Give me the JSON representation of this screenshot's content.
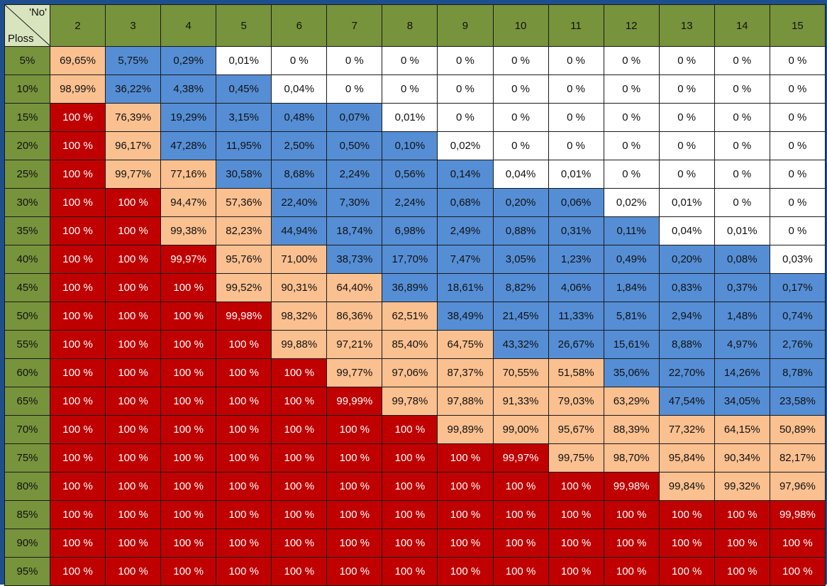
{
  "colors": {
    "header": "#77933c",
    "corner": "#d7e4bd",
    "red": "#c00000",
    "peach": "#fac090",
    "blue": "#558ed5",
    "white": "#ffffff",
    "frame": "#1f4e8c"
  },
  "chart_data": {
    "type": "table",
    "corner": {
      "top_right": "'No'",
      "bottom_left": "Ploss"
    },
    "columns": [
      "2",
      "3",
      "4",
      "5",
      "6",
      "7",
      "8",
      "9",
      "10",
      "11",
      "12",
      "13",
      "14",
      "15"
    ],
    "rows": [
      {
        "label": "5%",
        "cells": [
          [
            "69,65%",
            "peach"
          ],
          [
            "5,75%",
            "blue"
          ],
          [
            "0,29%",
            "blue"
          ],
          [
            "0,01%",
            "white"
          ],
          [
            "0 %",
            "white"
          ],
          [
            "0 %",
            "white"
          ],
          [
            "0 %",
            "white"
          ],
          [
            "0 %",
            "white"
          ],
          [
            "0 %",
            "white"
          ],
          [
            "0 %",
            "white"
          ],
          [
            "0 %",
            "white"
          ],
          [
            "0 %",
            "white"
          ],
          [
            "0 %",
            "white"
          ],
          [
            "0 %",
            "white"
          ]
        ]
      },
      {
        "label": "10%",
        "cells": [
          [
            "98,99%",
            "peach"
          ],
          [
            "36,22%",
            "blue"
          ],
          [
            "4,38%",
            "blue"
          ],
          [
            "0,45%",
            "blue"
          ],
          [
            "0,04%",
            "white"
          ],
          [
            "0 %",
            "white"
          ],
          [
            "0 %",
            "white"
          ],
          [
            "0 %",
            "white"
          ],
          [
            "0 %",
            "white"
          ],
          [
            "0 %",
            "white"
          ],
          [
            "0 %",
            "white"
          ],
          [
            "0 %",
            "white"
          ],
          [
            "0 %",
            "white"
          ],
          [
            "0 %",
            "white"
          ]
        ]
      },
      {
        "label": "15%",
        "cells": [
          [
            "100 %",
            "red"
          ],
          [
            "76,39%",
            "peach"
          ],
          [
            "19,29%",
            "blue"
          ],
          [
            "3,15%",
            "blue"
          ],
          [
            "0,48%",
            "blue"
          ],
          [
            "0,07%",
            "blue"
          ],
          [
            "0,01%",
            "white"
          ],
          [
            "0 %",
            "white"
          ],
          [
            "0 %",
            "white"
          ],
          [
            "0 %",
            "white"
          ],
          [
            "0 %",
            "white"
          ],
          [
            "0 %",
            "white"
          ],
          [
            "0 %",
            "white"
          ],
          [
            "0 %",
            "white"
          ]
        ]
      },
      {
        "label": "20%",
        "cells": [
          [
            "100 %",
            "red"
          ],
          [
            "96,17%",
            "peach"
          ],
          [
            "47,28%",
            "blue"
          ],
          [
            "11,95%",
            "blue"
          ],
          [
            "2,50%",
            "blue"
          ],
          [
            "0,50%",
            "blue"
          ],
          [
            "0,10%",
            "blue"
          ],
          [
            "0,02%",
            "white"
          ],
          [
            "0 %",
            "white"
          ],
          [
            "0 %",
            "white"
          ],
          [
            "0 %",
            "white"
          ],
          [
            "0 %",
            "white"
          ],
          [
            "0 %",
            "white"
          ],
          [
            "0 %",
            "white"
          ]
        ]
      },
      {
        "label": "25%",
        "cells": [
          [
            "100 %",
            "red"
          ],
          [
            "99,77%",
            "peach"
          ],
          [
            "77,16%",
            "peach"
          ],
          [
            "30,58%",
            "blue"
          ],
          [
            "8,68%",
            "blue"
          ],
          [
            "2,24%",
            "blue"
          ],
          [
            "0,56%",
            "blue"
          ],
          [
            "0,14%",
            "blue"
          ],
          [
            "0,04%",
            "white"
          ],
          [
            "0,01%",
            "white"
          ],
          [
            "0 %",
            "white"
          ],
          [
            "0 %",
            "white"
          ],
          [
            "0 %",
            "white"
          ],
          [
            "0 %",
            "white"
          ]
        ]
      },
      {
        "label": "30%",
        "cells": [
          [
            "100 %",
            "red"
          ],
          [
            "100 %",
            "red"
          ],
          [
            "94,47%",
            "peach"
          ],
          [
            "57,36%",
            "peach"
          ],
          [
            "22,40%",
            "blue"
          ],
          [
            "7,30%",
            "blue"
          ],
          [
            "2,24%",
            "blue"
          ],
          [
            "0,68%",
            "blue"
          ],
          [
            "0,20%",
            "blue"
          ],
          [
            "0,06%",
            "blue"
          ],
          [
            "0,02%",
            "white"
          ],
          [
            "0,01%",
            "white"
          ],
          [
            "0 %",
            "white"
          ],
          [
            "0 %",
            "white"
          ]
        ]
      },
      {
        "label": "35%",
        "cells": [
          [
            "100 %",
            "red"
          ],
          [
            "100 %",
            "red"
          ],
          [
            "99,38%",
            "peach"
          ],
          [
            "82,23%",
            "peach"
          ],
          [
            "44,94%",
            "blue"
          ],
          [
            "18,74%",
            "blue"
          ],
          [
            "6,98%",
            "blue"
          ],
          [
            "2,49%",
            "blue"
          ],
          [
            "0,88%",
            "blue"
          ],
          [
            "0,31%",
            "blue"
          ],
          [
            "0,11%",
            "blue"
          ],
          [
            "0,04%",
            "white"
          ],
          [
            "0,01%",
            "white"
          ],
          [
            "0 %",
            "white"
          ]
        ]
      },
      {
        "label": "40%",
        "cells": [
          [
            "100 %",
            "red"
          ],
          [
            "100 %",
            "red"
          ],
          [
            "99,97%",
            "red"
          ],
          [
            "95,76%",
            "peach"
          ],
          [
            "71,00%",
            "peach"
          ],
          [
            "38,73%",
            "blue"
          ],
          [
            "17,70%",
            "blue"
          ],
          [
            "7,47%",
            "blue"
          ],
          [
            "3,05%",
            "blue"
          ],
          [
            "1,23%",
            "blue"
          ],
          [
            "0,49%",
            "blue"
          ],
          [
            "0,20%",
            "blue"
          ],
          [
            "0,08%",
            "blue"
          ],
          [
            "0,03%",
            "white"
          ]
        ]
      },
      {
        "label": "45%",
        "cells": [
          [
            "100 %",
            "red"
          ],
          [
            "100 %",
            "red"
          ],
          [
            "100 %",
            "red"
          ],
          [
            "99,52%",
            "peach"
          ],
          [
            "90,31%",
            "peach"
          ],
          [
            "64,40%",
            "peach"
          ],
          [
            "36,89%",
            "blue"
          ],
          [
            "18,61%",
            "blue"
          ],
          [
            "8,82%",
            "blue"
          ],
          [
            "4,06%",
            "blue"
          ],
          [
            "1,84%",
            "blue"
          ],
          [
            "0,83%",
            "blue"
          ],
          [
            "0,37%",
            "blue"
          ],
          [
            "0,17%",
            "blue"
          ]
        ]
      },
      {
        "label": "50%",
        "cells": [
          [
            "100 %",
            "red"
          ],
          [
            "100 %",
            "red"
          ],
          [
            "100 %",
            "red"
          ],
          [
            "99,98%",
            "red"
          ],
          [
            "98,32%",
            "peach"
          ],
          [
            "86,36%",
            "peach"
          ],
          [
            "62,51%",
            "peach"
          ],
          [
            "38,49%",
            "blue"
          ],
          [
            "21,45%",
            "blue"
          ],
          [
            "11,33%",
            "blue"
          ],
          [
            "5,81%",
            "blue"
          ],
          [
            "2,94%",
            "blue"
          ],
          [
            "1,48%",
            "blue"
          ],
          [
            "0,74%",
            "blue"
          ]
        ]
      },
      {
        "label": "55%",
        "cells": [
          [
            "100 %",
            "red"
          ],
          [
            "100 %",
            "red"
          ],
          [
            "100 %",
            "red"
          ],
          [
            "100 %",
            "red"
          ],
          [
            "99,88%",
            "peach"
          ],
          [
            "97,21%",
            "peach"
          ],
          [
            "85,40%",
            "peach"
          ],
          [
            "64,75%",
            "peach"
          ],
          [
            "43,32%",
            "blue"
          ],
          [
            "26,67%",
            "blue"
          ],
          [
            "15,61%",
            "blue"
          ],
          [
            "8,88%",
            "blue"
          ],
          [
            "4,97%",
            "blue"
          ],
          [
            "2,76%",
            "blue"
          ]
        ]
      },
      {
        "label": "60%",
        "cells": [
          [
            "100 %",
            "red"
          ],
          [
            "100 %",
            "red"
          ],
          [
            "100 %",
            "red"
          ],
          [
            "100 %",
            "red"
          ],
          [
            "100 %",
            "red"
          ],
          [
            "99,77%",
            "peach"
          ],
          [
            "97,06%",
            "peach"
          ],
          [
            "87,37%",
            "peach"
          ],
          [
            "70,55%",
            "peach"
          ],
          [
            "51,58%",
            "peach"
          ],
          [
            "35,06%",
            "blue"
          ],
          [
            "22,70%",
            "blue"
          ],
          [
            "14,26%",
            "blue"
          ],
          [
            "8,78%",
            "blue"
          ]
        ]
      },
      {
        "label": "65%",
        "cells": [
          [
            "100 %",
            "red"
          ],
          [
            "100 %",
            "red"
          ],
          [
            "100 %",
            "red"
          ],
          [
            "100 %",
            "red"
          ],
          [
            "100 %",
            "red"
          ],
          [
            "99,99%",
            "red"
          ],
          [
            "99,78%",
            "peach"
          ],
          [
            "97,88%",
            "peach"
          ],
          [
            "91,33%",
            "peach"
          ],
          [
            "79,03%",
            "peach"
          ],
          [
            "63,29%",
            "peach"
          ],
          [
            "47,54%",
            "blue"
          ],
          [
            "34,05%",
            "blue"
          ],
          [
            "23,58%",
            "blue"
          ]
        ]
      },
      {
        "label": "70%",
        "cells": [
          [
            "100 %",
            "red"
          ],
          [
            "100 %",
            "red"
          ],
          [
            "100 %",
            "red"
          ],
          [
            "100 %",
            "red"
          ],
          [
            "100 %",
            "red"
          ],
          [
            "100 %",
            "red"
          ],
          [
            "100 %",
            "red"
          ],
          [
            "99,89%",
            "peach"
          ],
          [
            "99,00%",
            "peach"
          ],
          [
            "95,67%",
            "peach"
          ],
          [
            "88,39%",
            "peach"
          ],
          [
            "77,32%",
            "peach"
          ],
          [
            "64,15%",
            "peach"
          ],
          [
            "50,89%",
            "peach"
          ]
        ]
      },
      {
        "label": "75%",
        "cells": [
          [
            "100 %",
            "red"
          ],
          [
            "100 %",
            "red"
          ],
          [
            "100 %",
            "red"
          ],
          [
            "100 %",
            "red"
          ],
          [
            "100 %",
            "red"
          ],
          [
            "100 %",
            "red"
          ],
          [
            "100 %",
            "red"
          ],
          [
            "100 %",
            "red"
          ],
          [
            "99,97%",
            "red"
          ],
          [
            "99,75%",
            "peach"
          ],
          [
            "98,70%",
            "peach"
          ],
          [
            "95,84%",
            "peach"
          ],
          [
            "90,34%",
            "peach"
          ],
          [
            "82,17%",
            "peach"
          ]
        ]
      },
      {
        "label": "80%",
        "cells": [
          [
            "100 %",
            "red"
          ],
          [
            "100 %",
            "red"
          ],
          [
            "100 %",
            "red"
          ],
          [
            "100 %",
            "red"
          ],
          [
            "100 %",
            "red"
          ],
          [
            "100 %",
            "red"
          ],
          [
            "100 %",
            "red"
          ],
          [
            "100 %",
            "red"
          ],
          [
            "100 %",
            "red"
          ],
          [
            "100 %",
            "red"
          ],
          [
            "99,98%",
            "red"
          ],
          [
            "99,84%",
            "peach"
          ],
          [
            "99,32%",
            "peach"
          ],
          [
            "97,96%",
            "peach"
          ]
        ]
      },
      {
        "label": "85%",
        "cells": [
          [
            "100 %",
            "red"
          ],
          [
            "100 %",
            "red"
          ],
          [
            "100 %",
            "red"
          ],
          [
            "100 %",
            "red"
          ],
          [
            "100 %",
            "red"
          ],
          [
            "100 %",
            "red"
          ],
          [
            "100 %",
            "red"
          ],
          [
            "100 %",
            "red"
          ],
          [
            "100 %",
            "red"
          ],
          [
            "100 %",
            "red"
          ],
          [
            "100 %",
            "red"
          ],
          [
            "100 %",
            "red"
          ],
          [
            "100 %",
            "red"
          ],
          [
            "99,98%",
            "red"
          ]
        ]
      },
      {
        "label": "90%",
        "cells": [
          [
            "100 %",
            "red"
          ],
          [
            "100 %",
            "red"
          ],
          [
            "100 %",
            "red"
          ],
          [
            "100 %",
            "red"
          ],
          [
            "100 %",
            "red"
          ],
          [
            "100 %",
            "red"
          ],
          [
            "100 %",
            "red"
          ],
          [
            "100 %",
            "red"
          ],
          [
            "100 %",
            "red"
          ],
          [
            "100 %",
            "red"
          ],
          [
            "100 %",
            "red"
          ],
          [
            "100 %",
            "red"
          ],
          [
            "100 %",
            "red"
          ],
          [
            "100 %",
            "red"
          ]
        ]
      },
      {
        "label": "95%",
        "cells": [
          [
            "100 %",
            "red"
          ],
          [
            "100 %",
            "red"
          ],
          [
            "100 %",
            "red"
          ],
          [
            "100 %",
            "red"
          ],
          [
            "100 %",
            "red"
          ],
          [
            "100 %",
            "red"
          ],
          [
            "100 %",
            "red"
          ],
          [
            "100 %",
            "red"
          ],
          [
            "100 %",
            "red"
          ],
          [
            "100 %",
            "red"
          ],
          [
            "100 %",
            "red"
          ],
          [
            "100 %",
            "red"
          ],
          [
            "100 %",
            "red"
          ],
          [
            "100 %",
            "red"
          ]
        ]
      }
    ]
  }
}
